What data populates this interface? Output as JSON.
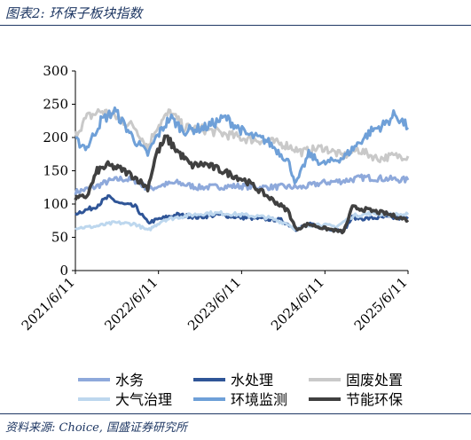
{
  "header": {
    "title": "图表2:  环保子板块指数"
  },
  "footer": {
    "source": "资料来源:  Choice,  国盛证券研究所"
  },
  "chart_data": {
    "type": "line",
    "title": "",
    "xlabel": "",
    "ylabel": "",
    "ylim": [
      0,
      300
    ],
    "y_ticks": [
      "0",
      "50",
      "100",
      "150",
      "200",
      "250",
      "300"
    ],
    "x_ticks": [
      "2021/6/11",
      "2022/6/11",
      "2023/6/11",
      "2024/6/11",
      "2025/6/11"
    ],
    "xlim": [
      "2021/6/11",
      "2025/6/11"
    ],
    "grid": false,
    "legend": "bottom",
    "series": [
      {
        "name": "水务",
        "color": "#8ea9db",
        "width": 3,
        "points": [
          [
            "2021-06-11",
            118
          ],
          [
            "2021-09-01",
            125
          ],
          [
            "2021-11-01",
            134
          ],
          [
            "2022-01-01",
            138
          ],
          [
            "2022-03-01",
            135
          ],
          [
            "2022-05-01",
            122
          ],
          [
            "2022-06-20",
            128
          ],
          [
            "2022-09-01",
            132
          ],
          [
            "2022-12-01",
            125
          ],
          [
            "2023-03-01",
            126
          ],
          [
            "2023-06-01",
            127
          ],
          [
            "2023-09-01",
            125
          ],
          [
            "2023-12-01",
            126
          ],
          [
            "2024-03-01",
            125
          ],
          [
            "2024-06-01",
            132
          ],
          [
            "2024-09-01",
            135
          ],
          [
            "2024-12-01",
            140
          ],
          [
            "2025-03-01",
            138
          ],
          [
            "2025-06-11",
            136
          ]
        ]
      },
      {
        "name": "水处理",
        "color": "#2f5597",
        "width": 3,
        "points": [
          [
            "2021-06-11",
            86
          ],
          [
            "2021-09-01",
            95
          ],
          [
            "2021-11-01",
            110
          ],
          [
            "2022-01-01",
            100
          ],
          [
            "2022-03-01",
            96
          ],
          [
            "2022-04-25",
            72
          ],
          [
            "2022-06-20",
            78
          ],
          [
            "2022-09-01",
            84
          ],
          [
            "2022-12-01",
            80
          ],
          [
            "2023-03-01",
            84
          ],
          [
            "2023-06-01",
            80
          ],
          [
            "2023-09-01",
            78
          ],
          [
            "2023-12-01",
            76
          ],
          [
            "2024-02-05",
            62
          ],
          [
            "2024-04-01",
            70
          ],
          [
            "2024-06-01",
            64
          ],
          [
            "2024-09-01",
            60
          ],
          [
            "2024-10-10",
            80
          ],
          [
            "2024-12-01",
            78
          ],
          [
            "2025-03-01",
            80
          ],
          [
            "2025-06-11",
            78
          ]
        ]
      },
      {
        "name": "固废处置",
        "color": "#c9c9c9",
        "width": 3,
        "points": [
          [
            "2021-06-11",
            205
          ],
          [
            "2021-08-01",
            230
          ],
          [
            "2021-10-01",
            240
          ],
          [
            "2021-12-01",
            232
          ],
          [
            "2022-03-01",
            215
          ],
          [
            "2022-04-25",
            185
          ],
          [
            "2022-06-01",
            215
          ],
          [
            "2022-08-01",
            238
          ],
          [
            "2022-10-01",
            215
          ],
          [
            "2023-01-01",
            212
          ],
          [
            "2023-04-01",
            205
          ],
          [
            "2023-07-01",
            198
          ],
          [
            "2023-10-01",
            195
          ],
          [
            "2024-01-01",
            188
          ],
          [
            "2024-03-01",
            178
          ],
          [
            "2024-06-01",
            185
          ],
          [
            "2024-09-01",
            172
          ],
          [
            "2024-11-01",
            182
          ],
          [
            "2025-02-01",
            168
          ],
          [
            "2025-04-01",
            172
          ],
          [
            "2025-06-11",
            172
          ]
        ]
      },
      {
        "name": "大气治理",
        "color": "#bdd7ee",
        "width": 3,
        "points": [
          [
            "2021-06-11",
            64
          ],
          [
            "2021-09-01",
            66
          ],
          [
            "2021-12-01",
            72
          ],
          [
            "2022-03-01",
            70
          ],
          [
            "2022-04-25",
            60
          ],
          [
            "2022-07-01",
            76
          ],
          [
            "2022-10-01",
            82
          ],
          [
            "2023-01-01",
            86
          ],
          [
            "2023-04-01",
            86
          ],
          [
            "2023-07-01",
            83
          ],
          [
            "2023-10-01",
            80
          ],
          [
            "2024-01-01",
            70
          ],
          [
            "2024-02-05",
            62
          ],
          [
            "2024-05-01",
            70
          ],
          [
            "2024-08-01",
            66
          ],
          [
            "2024-10-10",
            82
          ],
          [
            "2025-01-01",
            86
          ],
          [
            "2025-04-01",
            84
          ],
          [
            "2025-06-11",
            84
          ]
        ]
      },
      {
        "name": "环境监测",
        "color": "#6fa0d8",
        "width": 3,
        "points": [
          [
            "2021-06-11",
            195
          ],
          [
            "2021-08-01",
            185
          ],
          [
            "2021-10-01",
            225
          ],
          [
            "2021-12-01",
            240
          ],
          [
            "2022-03-01",
            195
          ],
          [
            "2022-04-25",
            175
          ],
          [
            "2022-06-01",
            200
          ],
          [
            "2022-08-01",
            230
          ],
          [
            "2022-10-01",
            210
          ],
          [
            "2023-01-01",
            215
          ],
          [
            "2023-04-01",
            230
          ],
          [
            "2023-07-01",
            205
          ],
          [
            "2023-10-01",
            195
          ],
          [
            "2024-01-01",
            165
          ],
          [
            "2024-02-05",
            130
          ],
          [
            "2024-04-01",
            175
          ],
          [
            "2024-06-01",
            160
          ],
          [
            "2024-09-01",
            170
          ],
          [
            "2024-11-01",
            190
          ],
          [
            "2025-01-01",
            210
          ],
          [
            "2025-03-01",
            220
          ],
          [
            "2025-04-15",
            235
          ],
          [
            "2025-06-11",
            215
          ]
        ]
      },
      {
        "name": "节能环保",
        "color": "#404040",
        "width": 3.6,
        "points": [
          [
            "2021-06-11",
            108
          ],
          [
            "2021-08-01",
            112
          ],
          [
            "2021-09-15",
            150
          ],
          [
            "2021-11-01",
            158
          ],
          [
            "2022-01-01",
            152
          ],
          [
            "2022-03-01",
            140
          ],
          [
            "2022-04-25",
            124
          ],
          [
            "2022-06-01",
            175
          ],
          [
            "2022-07-15",
            200
          ],
          [
            "2022-09-01",
            180
          ],
          [
            "2022-11-01",
            158
          ],
          [
            "2023-01-01",
            160
          ],
          [
            "2023-04-01",
            148
          ],
          [
            "2023-07-01",
            135
          ],
          [
            "2023-10-01",
            112
          ],
          [
            "2024-01-01",
            90
          ],
          [
            "2024-02-05",
            62
          ],
          [
            "2024-04-01",
            70
          ],
          [
            "2024-06-01",
            64
          ],
          [
            "2024-09-01",
            58
          ],
          [
            "2024-10-10",
            95
          ],
          [
            "2024-12-01",
            92
          ],
          [
            "2025-03-01",
            86
          ],
          [
            "2025-06-11",
            76
          ]
        ]
      }
    ]
  }
}
